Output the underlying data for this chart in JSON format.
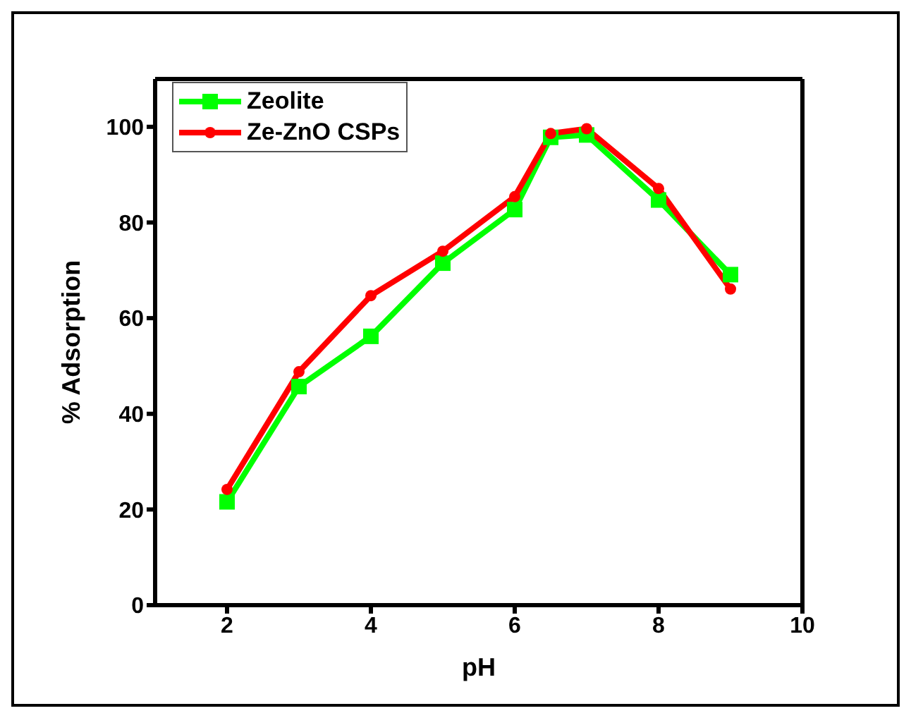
{
  "chart_data": {
    "type": "line",
    "xlabel": "pH",
    "ylabel": "% Adsorption",
    "x": [
      2,
      3,
      4,
      5,
      6,
      6.5,
      7,
      8,
      9
    ],
    "xlim": [
      1,
      10
    ],
    "xticks": [
      2,
      4,
      6,
      8,
      10
    ],
    "ylim": [
      0,
      110
    ],
    "yticks": [
      0,
      20,
      40,
      60,
      80,
      100
    ],
    "grid": false,
    "legend": "top left",
    "line_style": "solid",
    "series": [
      {
        "name": "Zeolite",
        "color": "#00ff00",
        "marker": "square",
        "values": [
          21.6,
          45.7,
          56.2,
          71.5,
          82.7,
          97.8,
          98.3,
          84.7,
          69.1
        ]
      },
      {
        "name": "Ze-ZnO CSPs",
        "color": "#ff0000",
        "marker": "circle",
        "values": [
          24.2,
          48.8,
          64.7,
          74,
          85.4,
          98.6,
          99.6,
          87.1,
          66.1
        ]
      }
    ]
  }
}
